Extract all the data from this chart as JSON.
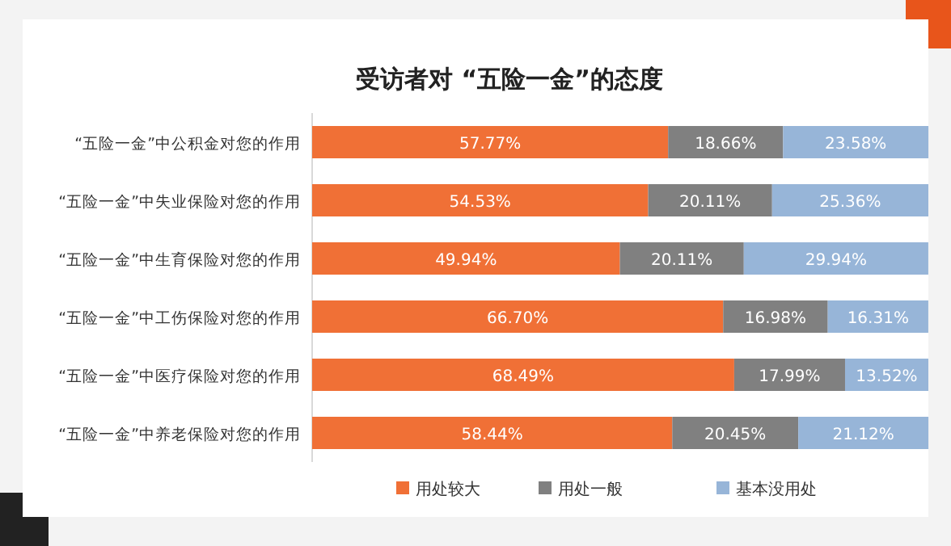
{
  "chart_data": {
    "type": "bar",
    "orientation": "horizontal",
    "stacked": true,
    "title": "受访者对 “五险一金”的态度",
    "categories": [
      "“五险一金”中公积金对您的作用",
      "“五险一金”中失业保险对您的作用",
      "“五险一金”中生育保险对您的作用",
      "“五险一金”中工伤保险对您的作用",
      "“五险一金”中医疗保险对您的作用",
      "“五险一金”中养老保险对您的作用"
    ],
    "series": [
      {
        "name": "用处较大",
        "color": "#f07036",
        "values": [
          57.77,
          54.53,
          49.94,
          66.7,
          68.49,
          58.44
        ],
        "value_labels": [
          "57.77%",
          "54.53%",
          "49.94%",
          "66.70%",
          "68.49%",
          "58.44%"
        ]
      },
      {
        "name": "用处一般",
        "color": "#808080",
        "values": [
          18.66,
          20.11,
          20.11,
          16.98,
          17.99,
          20.45
        ],
        "value_labels": [
          "18.66%",
          "20.11%",
          "20.11%",
          "16.98%",
          "17.99%",
          "20.45%"
        ]
      },
      {
        "name": "基本没用处",
        "color": "#97b5d8",
        "values": [
          23.58,
          25.36,
          29.94,
          16.31,
          13.52,
          21.12
        ],
        "value_labels": [
          "23.58%",
          "25.36%",
          "29.94%",
          "16.31%",
          "13.52%",
          "21.12%"
        ]
      }
    ],
    "xlim": [
      0,
      100
    ],
    "tick_labels": "y",
    "legend": "bottom"
  }
}
